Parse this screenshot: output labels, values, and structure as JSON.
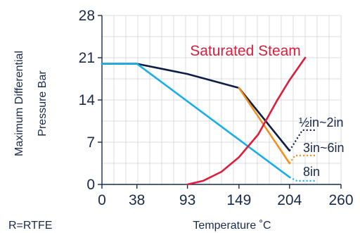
{
  "chart_data": {
    "type": "line",
    "xlabel": "Temperature ˚C",
    "ylabel": [
      "Maximum Differential",
      "Pressure Bar"
    ],
    "footnote": "R=RTFE",
    "x_ticks": [
      0,
      38,
      93,
      149,
      204,
      260
    ],
    "y_ticks": [
      0,
      7,
      14,
      21,
      28
    ],
    "xlim": [
      0,
      260
    ],
    "ylim": [
      0,
      28
    ],
    "grid": true,
    "series": [
      {
        "name": "½in~2in",
        "color": "#0f1d45",
        "points": [
          [
            0,
            20
          ],
          [
            38,
            20
          ],
          [
            93,
            18.3
          ],
          [
            149,
            16
          ],
          [
            204,
            5.6
          ]
        ],
        "dotted_extension": [
          [
            204,
            5.6
          ],
          [
            218,
            9
          ],
          [
            232,
            9
          ]
        ]
      },
      {
        "name": "3in~6in",
        "color": "#f0921e",
        "points": [
          [
            149,
            16
          ],
          [
            204,
            3.5
          ]
        ],
        "dotted_extension": [
          [
            204,
            3.5
          ],
          [
            210,
            4.8
          ],
          [
            232,
            4.8
          ]
        ]
      },
      {
        "name": "8in",
        "color": "#1aaee8",
        "points": [
          [
            0,
            20
          ],
          [
            38,
            20
          ],
          [
            204,
            1.2
          ]
        ],
        "dotted_extension": [
          [
            204,
            1.2
          ],
          [
            212,
            0.6
          ],
          [
            232,
            0.6
          ]
        ]
      },
      {
        "name": "Saturated Steam",
        "color": "#dc1e3c",
        "points": [
          [
            93,
            0
          ],
          [
            110,
            0.6
          ],
          [
            130,
            2.1
          ],
          [
            149,
            4.5
          ],
          [
            170,
            8.3
          ],
          [
            190,
            13.8
          ],
          [
            204,
            17.3
          ],
          [
            221,
            21.0
          ]
        ]
      }
    ]
  }
}
